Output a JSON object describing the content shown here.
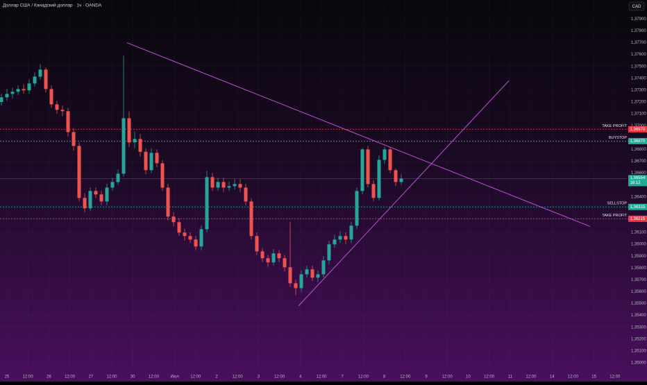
{
  "chart_data": {
    "type": "candlestick",
    "title": "Доллар США / Канадский доллар · 1ч · OANDA",
    "currency": "CAD",
    "ylim": [
      1.3493,
      1.3806
    ],
    "yticks": [
      {
        "value": 1.379,
        "label": "1,37900"
      },
      {
        "value": 1.378,
        "label": "1,37800"
      },
      {
        "value": 1.377,
        "label": "1,37700"
      },
      {
        "value": 1.376,
        "label": "1,37600"
      },
      {
        "value": 1.375,
        "label": "1,37500"
      },
      {
        "value": 1.374,
        "label": "1,37400"
      },
      {
        "value": 1.373,
        "label": "1,37300"
      },
      {
        "value": 1.372,
        "label": "1,37200"
      },
      {
        "value": 1.371,
        "label": "1,37100"
      },
      {
        "value": 1.37,
        "label": "1,37000"
      },
      {
        "value": 1.368,
        "label": "1,36800"
      },
      {
        "value": 1.367,
        "label": "1,36700"
      },
      {
        "value": 1.366,
        "label": "1,36600"
      },
      {
        "value": 1.364,
        "label": "1,36400"
      },
      {
        "value": 1.361,
        "label": "1,36100"
      },
      {
        "value": 1.36,
        "label": "1,36000"
      },
      {
        "value": 1.359,
        "label": "1,35900"
      },
      {
        "value": 1.358,
        "label": "1,35800"
      },
      {
        "value": 1.357,
        "label": "1,35700"
      },
      {
        "value": 1.356,
        "label": "1,35600"
      },
      {
        "value": 1.355,
        "label": "1,35500"
      },
      {
        "value": 1.354,
        "label": "1,35400"
      },
      {
        "value": 1.353,
        "label": "1,35300"
      },
      {
        "value": 1.352,
        "label": "1,35200"
      },
      {
        "value": 1.351,
        "label": "1,35100"
      },
      {
        "value": 1.35,
        "label": "1,35000"
      }
    ],
    "x_axis_labels": [
      "25",
      "12:00",
      "26",
      "12:00",
      "27",
      "12:00",
      "30",
      "12:00",
      "Июл",
      "12:00",
      "2",
      "12:00",
      "3",
      "12:00",
      "4",
      "12:00",
      "7",
      "12:00",
      "8",
      "12:00",
      "9",
      "12:00",
      "10",
      "12:00",
      "11",
      "12:00",
      "14",
      "12:00",
      "15",
      "12:00"
    ],
    "up_color": "#26a69a",
    "down_color": "#ef5350",
    "open": [
      1.372,
      1.37239,
      1.37268,
      1.37286,
      1.37309,
      1.37298,
      1.37356,
      1.37414,
      1.37473,
      1.37309,
      1.3718,
      1.37134,
      1.37122,
      1.36946,
      1.36829,
      1.36391,
      1.36303,
      1.36449,
      1.3642,
      1.36361,
      1.36478,
      1.36525,
      1.36595,
      1.37063,
      1.36859,
      1.36888,
      1.3678,
      1.36625,
      1.36771,
      1.36683,
      1.36478,
      1.36233,
      1.36186,
      1.36098,
      1.36069,
      1.3604,
      1.35981,
      1.36127,
      1.36566,
      1.36478,
      1.36525,
      1.36478,
      1.3649,
      1.36508,
      1.36478,
      1.36361,
      1.36069,
      1.3594,
      1.35882,
      1.35847,
      1.35923,
      1.35882,
      1.35806,
      1.35671,
      1.3563,
      1.35747,
      1.35788,
      1.35718,
      1.35747,
      1.35864,
      1.35999,
      1.3604,
      1.36069,
      1.3604,
      1.36157,
      1.36449,
      1.368,
      1.36508,
      1.36391,
      1.36712,
      1.368,
      1.36625,
      1.36525
    ],
    "high": [
      1.3727,
      1.3731,
      1.3732,
      1.3734,
      1.3735,
      1.3739,
      1.3745,
      1.3752,
      1.3749,
      1.3734,
      1.3721,
      1.3717,
      1.3715,
      1.3698,
      1.3686,
      1.3643,
      1.3648,
      1.3648,
      1.3645,
      1.3651,
      1.3656,
      1.3663,
      1.3759,
      1.3712,
      1.3695,
      1.3693,
      1.3681,
      1.3681,
      1.368,
      1.3671,
      1.3651,
      1.3627,
      1.3622,
      1.3613,
      1.361,
      1.3607,
      1.3616,
      1.3662,
      1.366,
      1.3656,
      1.3656,
      1.3653,
      1.3655,
      1.3655,
      1.3651,
      1.3639,
      1.361,
      1.3597,
      1.3591,
      1.3596,
      1.3595,
      1.3591,
      1.3619,
      1.357,
      1.3578,
      1.3582,
      1.3582,
      1.3578,
      1.359,
      1.3603,
      1.3608,
      1.3611,
      1.361,
      1.3619,
      1.3648,
      1.3681,
      1.3683,
      1.3654,
      1.3675,
      1.3682,
      1.3682,
      1.3664,
      1.3659
    ],
    "low": [
      1.3717,
      1.3721,
      1.3723,
      1.3726,
      1.3727,
      1.3727,
      1.3733,
      1.3739,
      1.3728,
      1.3715,
      1.371,
      1.3708,
      1.3691,
      1.3679,
      1.3636,
      1.3627,
      1.3628,
      1.3639,
      1.3633,
      1.3633,
      1.3645,
      1.365,
      1.3657,
      1.3682,
      1.3681,
      1.3674,
      1.3659,
      1.366,
      1.3665,
      1.3645,
      1.362,
      1.3615,
      1.3607,
      1.3603,
      1.3601,
      1.3595,
      1.3595,
      1.361,
      1.3645,
      1.3645,
      1.3644,
      1.3645,
      1.3646,
      1.3644,
      1.3633,
      1.3604,
      1.3591,
      1.3585,
      1.3581,
      1.3582,
      1.3585,
      1.3577,
      1.3564,
      1.3557,
      1.356,
      1.3572,
      1.3569,
      1.3568,
      1.3572,
      1.3583,
      1.3597,
      1.3601,
      1.36,
      1.3601,
      1.3613,
      1.3642,
      1.3648,
      1.3636,
      1.3637,
      1.3668,
      1.366,
      1.3649,
      1.365
    ],
    "close": [
      1.37239,
      1.37268,
      1.37286,
      1.37309,
      1.37298,
      1.37356,
      1.37414,
      1.37473,
      1.37309,
      1.3718,
      1.37134,
      1.37122,
      1.36946,
      1.36829,
      1.36391,
      1.36303,
      1.36449,
      1.3642,
      1.36361,
      1.36478,
      1.36525,
      1.36595,
      1.37063,
      1.36859,
      1.36888,
      1.3678,
      1.36625,
      1.36771,
      1.36683,
      1.36478,
      1.36233,
      1.36186,
      1.36098,
      1.36069,
      1.3604,
      1.35981,
      1.36127,
      1.36566,
      1.36478,
      1.36525,
      1.36478,
      1.3649,
      1.36508,
      1.36478,
      1.36361,
      1.36069,
      1.3594,
      1.35882,
      1.35847,
      1.35923,
      1.35882,
      1.35806,
      1.35671,
      1.3563,
      1.35747,
      1.35788,
      1.35718,
      1.35747,
      1.35864,
      1.35999,
      1.3604,
      1.36069,
      1.3604,
      1.36157,
      1.36449,
      1.368,
      1.36508,
      1.36391,
      1.36712,
      1.368,
      1.36625,
      1.36525,
      1.36554
    ],
    "levels": [
      {
        "name": "TAKE PROFIT",
        "price": {
          "value": 1.3697,
          "label": "1,36970"
        },
        "color": "#f23645"
      },
      {
        "name": "BUYSTOP",
        "price": {
          "value": 1.3687,
          "label": "1,36870"
        },
        "color": "#22ab94"
      },
      {
        "name": "SELLSTOP",
        "price": {
          "value": 1.36315,
          "label": "1,36315"
        },
        "color": "#22ab94"
      },
      {
        "name": "TAKE PROFIT",
        "price": {
          "value": 1.36215,
          "label": "1,36215"
        },
        "color": "#f23645"
      }
    ],
    "last_price": {
      "value": 1.36554,
      "label": "1,36554"
    },
    "countdown": "16:12",
    "trendlines": [
      {
        "x": [
          22.6,
          106
        ],
        "y": [
          1.377,
          1.3615
        ],
        "color": "#c050d8"
      },
      {
        "x": [
          53.5,
          91.4
        ],
        "y": [
          1.3548,
          1.3738
        ],
        "color": "#c050d8"
      }
    ]
  }
}
